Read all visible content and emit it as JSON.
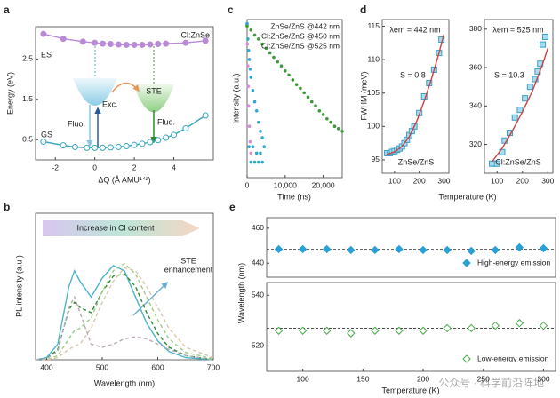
{
  "chart_data": [
    {
      "panel": "a",
      "type": "line",
      "title": "Cl:ZnSe",
      "xlabel": "ΔQ (Å AMU¹ᐟ²)",
      "ylabel": "Energy (eV)",
      "xlim": [
        -3,
        6
      ],
      "ylim": [
        0,
        3.3
      ],
      "xticks": [
        -2,
        0,
        2,
        4
      ],
      "yticks": [
        0.5,
        1.5,
        2.5
      ],
      "series": [
        {
          "name": "ES",
          "color": "#b98ad6",
          "marker": "circle",
          "filled": true,
          "line": "solid",
          "x": [
            -2.6,
            -1.6,
            -0.6,
            0,
            0.4,
            0.8,
            1.2,
            1.6,
            2,
            2.4,
            2.8,
            3.2,
            3.6,
            4.6,
            5.6
          ],
          "values": [
            3.12,
            3.0,
            2.93,
            2.9,
            2.88,
            2.87,
            2.86,
            2.85,
            2.85,
            2.85,
            2.86,
            2.87,
            2.88,
            2.9,
            2.95
          ]
        },
        {
          "name": "GS",
          "color": "#3aa6b9",
          "marker": "circle",
          "filled": false,
          "line": "solid",
          "x": [
            -2.6,
            -1.6,
            -1,
            -0.4,
            0,
            0.4,
            0.8,
            1.2,
            1.6,
            2,
            2.4,
            2.8,
            3.2,
            3.6,
            4,
            4.6,
            5.6
          ],
          "values": [
            0.45,
            0.36,
            0.32,
            0.3,
            0.3,
            0.3,
            0.31,
            0.32,
            0.34,
            0.37,
            0.4,
            0.44,
            0.49,
            0.55,
            0.62,
            0.78,
            1.1
          ]
        }
      ],
      "annotations": [
        "Exc.",
        "Fluo.",
        "STE",
        "Fluo."
      ]
    },
    {
      "panel": "b",
      "type": "line",
      "xlabel": "Wavelength (nm)",
      "ylabel": "PL intensity (a.u.)",
      "xlim": [
        380,
        700
      ],
      "ylim": [
        0,
        1.4
      ],
      "xticks": [
        400,
        500,
        600,
        700
      ],
      "series": [
        {
          "color": "#4bb5c9",
          "line": "solid",
          "x": [
            380,
            400,
            420,
            440,
            450,
            460,
            480,
            500,
            520,
            540,
            560,
            580,
            600,
            620,
            650,
            700
          ],
          "values": [
            0,
            0.02,
            0.15,
            0.7,
            0.85,
            0.75,
            0.6,
            0.78,
            0.9,
            0.85,
            0.6,
            0.35,
            0.18,
            0.08,
            0.02,
            0
          ]
        },
        {
          "color": "#2e8b2e",
          "line": "dashed",
          "x": [
            380,
            400,
            420,
            440,
            450,
            460,
            480,
            500,
            520,
            540,
            560,
            580,
            600,
            620,
            650,
            700
          ],
          "values": [
            0,
            0.01,
            0.1,
            0.48,
            0.55,
            0.5,
            0.45,
            0.65,
            0.8,
            0.82,
            0.7,
            0.45,
            0.25,
            0.12,
            0.04,
            0
          ]
        },
        {
          "color": "#9acd84",
          "line": "dashed",
          "x": [
            380,
            400,
            420,
            440,
            450,
            460,
            480,
            500,
            520,
            540,
            560,
            580,
            600,
            620,
            650,
            700
          ],
          "values": [
            0,
            0,
            0.04,
            0.2,
            0.28,
            0.3,
            0.4,
            0.65,
            0.85,
            0.92,
            0.82,
            0.6,
            0.38,
            0.2,
            0.07,
            0.01
          ]
        },
        {
          "color": "#d8c8a8",
          "line": "dashed",
          "x": [
            380,
            400,
            420,
            440,
            450,
            460,
            480,
            500,
            520,
            540,
            560,
            580,
            600,
            620,
            650,
            700
          ],
          "values": [
            0,
            0,
            0.02,
            0.1,
            0.13,
            0.15,
            0.3,
            0.55,
            0.75,
            0.88,
            0.85,
            0.7,
            0.5,
            0.3,
            0.12,
            0.02
          ]
        },
        {
          "color": "#b8a8b8",
          "line": "dashed",
          "x": [
            380,
            400,
            420,
            440,
            450,
            460,
            480,
            500,
            520,
            540,
            560,
            580,
            600,
            620,
            650,
            700
          ],
          "values": [
            0,
            0.01,
            0.08,
            0.5,
            0.6,
            0.45,
            0.15,
            0.12,
            0.15,
            0.2,
            0.22,
            0.2,
            0.15,
            0.1,
            0.04,
            0
          ]
        }
      ],
      "annotations": [
        "Increase in Cl content",
        "STE",
        "enhancement"
      ]
    },
    {
      "panel": "c",
      "type": "scatter",
      "xlabel": "Time (ns)",
      "ylabel": "Intensity (a.u.)",
      "ylog": true,
      "xlim": [
        0,
        25000
      ],
      "ylim": [
        0.001,
        1.2
      ],
      "xticks": [
        0,
        {
          "value": 10000,
          "label": "10,000"
        },
        {
          "value": 20000,
          "label": "20,000"
        }
      ],
      "legend": "upper-right",
      "series": [
        {
          "name": "ZnSe/ZnS @442 nm",
          "color": "#d98bd9",
          "marker": "circle",
          "filled": true,
          "line": "none",
          "x": [
            0,
            100,
            200,
            300,
            400,
            600,
            800,
            1000
          ],
          "values": [
            1,
            0.4,
            0.15,
            0.06,
            0.025,
            0.01,
            0.005,
            0.003
          ]
        },
        {
          "name": "Cl:ZnSe/ZnS @450 nm",
          "color": "#2aa8d8",
          "marker": "circle",
          "filled": true,
          "line": "none",
          "x": [
            0,
            200,
            400,
            600,
            800,
            1000,
            1500,
            2000,
            2500,
            3000,
            3500,
            4000,
            4500,
            1000,
            2000,
            3000,
            4000,
            500,
            1500,
            2500,
            3500
          ],
          "values": [
            1,
            0.5,
            0.3,
            0.2,
            0.13,
            0.09,
            0.05,
            0.03,
            0.02,
            0.012,
            0.008,
            0.006,
            0.004,
            0.002,
            0.002,
            0.002,
            0.002,
            0.004,
            0.004,
            0.003,
            0.003
          ]
        },
        {
          "name": "Cl:ZnSe/ZnS @525 nm",
          "color": "#3a9a3a",
          "marker": "circle",
          "filled": true,
          "line": "none",
          "x": [
            0,
            1000,
            2000,
            3000,
            4000,
            5000,
            6000,
            7000,
            8000,
            9000,
            10000,
            11000,
            12000,
            13000,
            14000,
            15000,
            16000,
            17000,
            18000,
            19000,
            20000,
            21000,
            22000,
            23000,
            24000,
            25000
          ],
          "values": [
            0.9,
            0.75,
            0.6,
            0.5,
            0.4,
            0.33,
            0.27,
            0.22,
            0.18,
            0.15,
            0.12,
            0.1,
            0.08,
            0.065,
            0.055,
            0.045,
            0.037,
            0.03,
            0.025,
            0.02,
            0.017,
            0.014,
            0.012,
            0.01,
            0.009,
            0.008
          ]
        }
      ]
    },
    {
      "panel": "d",
      "type": "scatter",
      "xlabel": "Temperature (K)",
      "ylabel": "FWHM (meV)",
      "xlim": [
        50,
        320
      ],
      "ylim": [
        93,
        116
      ],
      "xticks": [
        100,
        200,
        300
      ],
      "yticks": [
        95,
        100,
        105,
        110,
        115
      ],
      "series": [
        {
          "color": "#3aa0c8",
          "marker": "square",
          "filled": true,
          "line": "none",
          "x": [
            70,
            80,
            90,
            100,
            110,
            120,
            130,
            140,
            150,
            160,
            170,
            180,
            200,
            220,
            240,
            260,
            280,
            290
          ],
          "values": [
            96,
            96,
            96.2,
            96.3,
            96.5,
            96.7,
            97,
            97.5,
            98,
            98.7,
            99.3,
            100,
            102,
            104.5,
            106.5,
            108.5,
            111,
            113
          ]
        },
        {
          "color": "#d04040",
          "line": "solid",
          "x": [
            70,
            100,
            130,
            160,
            190,
            220,
            250,
            280,
            300
          ],
          "values": [
            95.8,
            96.2,
            97,
            98.5,
            100.8,
            103.8,
            107.2,
            111,
            113.8
          ]
        }
      ],
      "annotations": [
        "λem = 442 nm",
        "S = 0.8",
        "ZnSe/ZnS"
      ]
    },
    {
      "type": "scatter",
      "xlim": [
        50,
        320
      ],
      "ylim": [
        305,
        385
      ],
      "xticks": [
        100,
        200,
        300
      ],
      "yticks": [
        320,
        340,
        360,
        380
      ],
      "series": [
        {
          "color": "#3aa0c8",
          "marker": "square",
          "filled": true,
          "line": "none",
          "x": [
            80,
            90,
            100,
            120,
            130,
            150,
            170,
            190,
            210,
            230,
            250,
            260,
            270,
            280,
            290
          ],
          "values": [
            310,
            310,
            310,
            316,
            322,
            326,
            334,
            338,
            344,
            350,
            354,
            358,
            362,
            372,
            376
          ]
        },
        {
          "color": "#d04040",
          "line": "solid",
          "x": [
            80,
            120,
            160,
            200,
            240,
            280,
            300
          ],
          "values": [
            311,
            318,
            327,
            337,
            348,
            362,
            370
          ]
        }
      ],
      "annotations": [
        "λem = 525 nm",
        "S = 10.3",
        "Cl:ZnSe/ZnS"
      ]
    },
    {
      "panel": "e",
      "type": "scatter",
      "ylabel": "Wavelength (nm)",
      "xlim": [
        70,
        310
      ],
      "ylim": [
        432,
        466
      ],
      "yticks": [
        440,
        460
      ],
      "reference_lines": [
        448
      ],
      "legend": "lower-right",
      "series": [
        {
          "name": "High-energy emission",
          "color": "#2aa0d8",
          "marker": "diamond",
          "filled": true,
          "line": "none",
          "x": [
            80,
            100,
            120,
            140,
            160,
            180,
            200,
            220,
            240,
            260,
            280,
            300
          ],
          "values": [
            448,
            448,
            448,
            447.5,
            447.5,
            448,
            447.5,
            447.5,
            447,
            447.5,
            449,
            448.5
          ]
        }
      ]
    },
    {
      "type": "scatter",
      "xlabel": "Temperature (K)",
      "xlim": [
        70,
        310
      ],
      "ylim": [
        510,
        545
      ],
      "xticks": [
        100,
        150,
        200,
        250,
        300
      ],
      "yticks": [
        520,
        540
      ],
      "reference_lines": [
        527
      ],
      "legend": "lower-right",
      "series": [
        {
          "name": "Low-energy emission",
          "color": "#4aa84a",
          "marker": "diamond",
          "filled": false,
          "line": "none",
          "x": [
            80,
            100,
            120,
            140,
            160,
            180,
            200,
            220,
            240,
            260,
            280,
            300
          ],
          "values": [
            526,
            526,
            526,
            525,
            526,
            526,
            526,
            527,
            527,
            528,
            529,
            528
          ]
        }
      ]
    }
  ],
  "watermark": "公众号 · 科学前沿阵地"
}
